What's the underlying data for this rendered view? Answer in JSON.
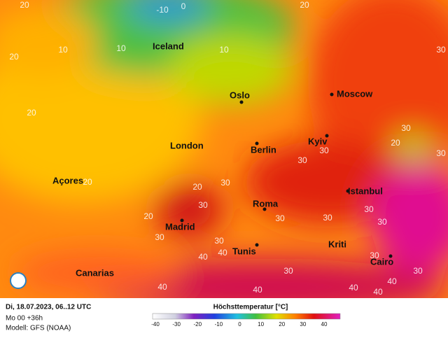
{
  "map": {
    "cities": [
      "Iceland",
      "Oslo",
      "Moscow",
      "London",
      "Berlin",
      "Kyiv",
      "Açores",
      "Madrid",
      "Roma",
      "Istanbul",
      "Tunis",
      "Kriti",
      "Cairo",
      "Canarias"
    ],
    "isoline_labels": [
      20,
      -10,
      0,
      20,
      10,
      10,
      20,
      10,
      20,
      30,
      30,
      20,
      30,
      30,
      20,
      30,
      30,
      20,
      30,
      30,
      30,
      30,
      30,
      30,
      40,
      40,
      30,
      40,
      40,
      40,
      40,
      40,
      30,
      30,
      30,
      20
    ]
  },
  "footer": {
    "date": "Di, 18.07.2023, 06..12 UTC",
    "run": "Mo 00 +36h",
    "model": "Modell: GFS (NOAA)"
  },
  "legend": {
    "title": "Höchsttemperatur [°C]",
    "ticks": [
      -40,
      -30,
      -20,
      -10,
      0,
      10,
      20,
      30,
      40
    ]
  }
}
